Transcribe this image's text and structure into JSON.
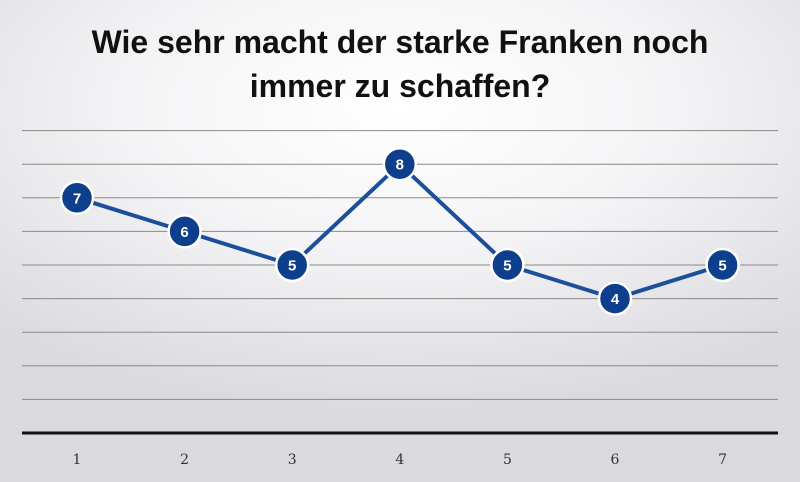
{
  "chart_data": {
    "type": "line",
    "title_lines": [
      "Wie sehr macht der starke Franken noch",
      "immer zu schaffen?"
    ],
    "categories": [
      "1",
      "2",
      "3",
      "4",
      "5",
      "6",
      "7"
    ],
    "values": [
      7,
      6,
      5,
      8,
      5,
      4,
      5
    ],
    "ylim": [
      0,
      9
    ],
    "grid": true,
    "legend": "none",
    "xlabel": "",
    "ylabel": ""
  },
  "colors": {
    "line": "#1b4f9a",
    "marker": "#0d3f8c",
    "marker_text": "#ffffff",
    "grid": "#8a8a8a",
    "axis": "#111111"
  }
}
